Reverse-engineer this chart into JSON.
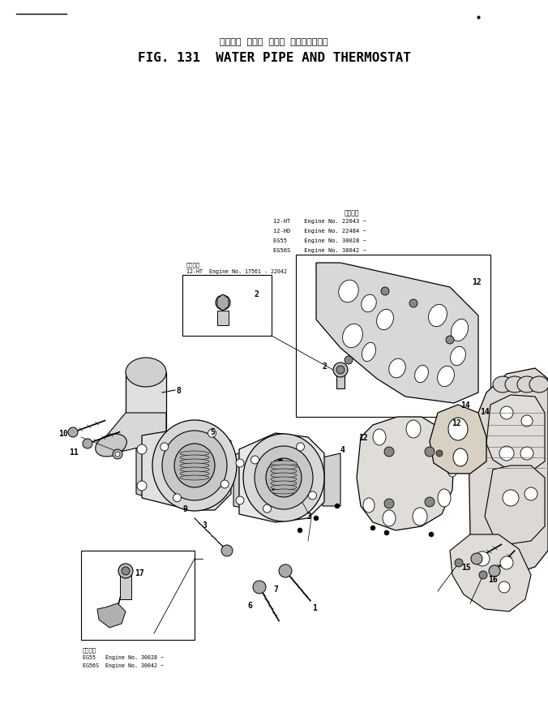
{
  "title_jp": "ウォータ  パイプ  および  サーモスタット",
  "title_en": "FIG. 131  WATER PIPE AND THERMOSTAT",
  "bg_color": "#ffffff",
  "title_font_size": 11.5,
  "title_jp_font_size": 8,
  "note1_jp": "適用底番",
  "note1_en": "12-HT  Engine No. 17561 - 22042",
  "note3_jp": "適用底番",
  "note3_en1": "EG55   Engine No. 30028 ~",
  "note3_en2": "EG56S  Engine No. 30042 ~",
  "eng_note_header": "適用底番",
  "eng_note_lines": [
    "12-HT    Engine No. 22043 ~",
    "12-HD    Engine No. 22484 ~",
    "EG55     Engine No. 30028 ~",
    "EG56S    Engine No. 30042 ~"
  ]
}
